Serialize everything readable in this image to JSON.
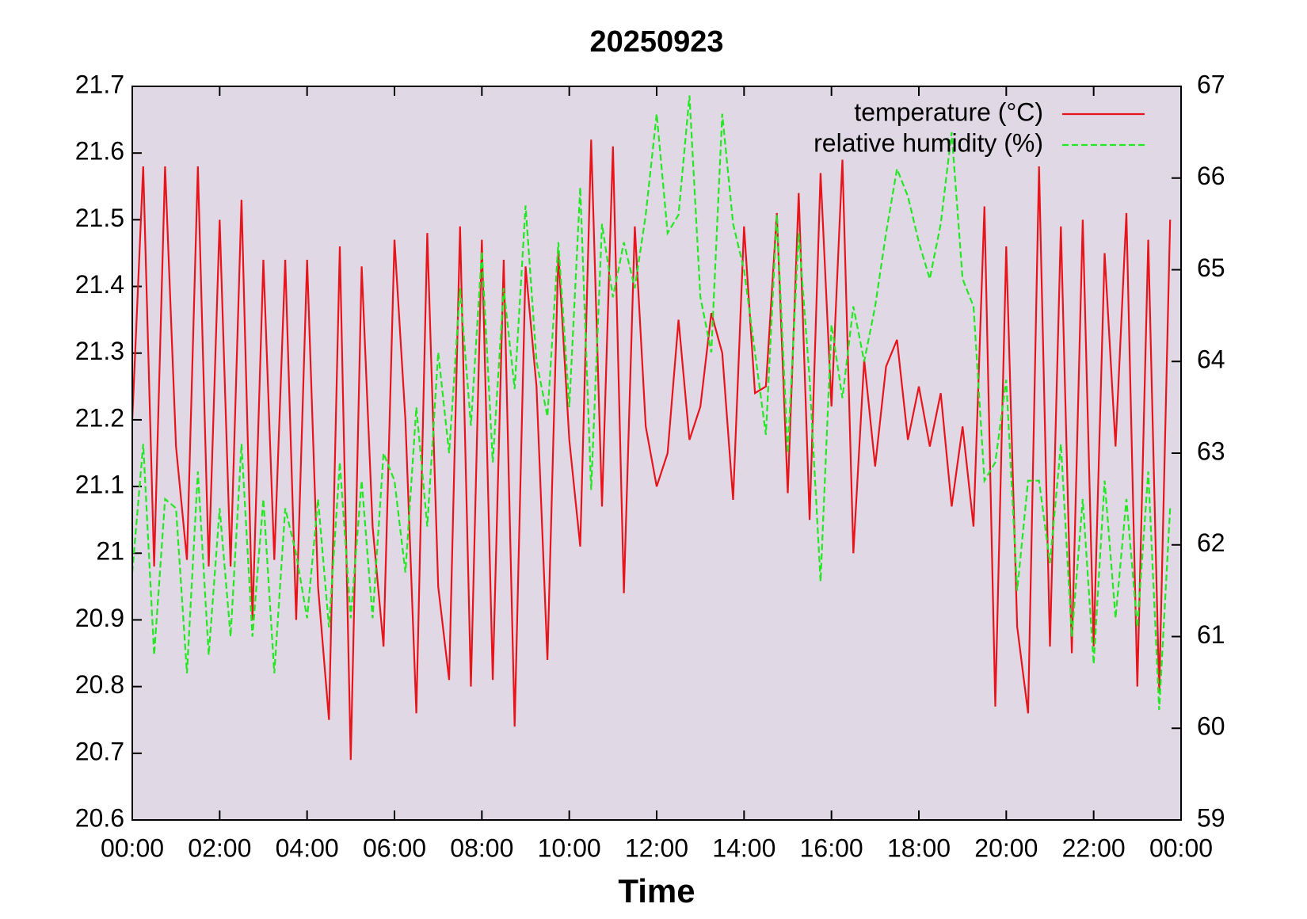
{
  "chart_data": {
    "type": "line",
    "title": "20250923",
    "xlabel": "Time",
    "x": [
      0,
      0.25,
      0.5,
      0.75,
      1,
      1.25,
      1.5,
      1.75,
      2,
      2.25,
      2.5,
      2.75,
      3,
      3.25,
      3.5,
      3.75,
      4,
      4.25,
      4.5,
      4.75,
      5,
      5.25,
      5.5,
      5.75,
      6,
      6.25,
      6.5,
      6.75,
      7,
      7.25,
      7.5,
      7.75,
      8,
      8.25,
      8.5,
      8.75,
      9,
      9.25,
      9.5,
      9.75,
      10,
      10.25,
      10.5,
      10.75,
      11,
      11.25,
      11.5,
      11.75,
      12,
      12.25,
      12.5,
      12.75,
      13,
      13.25,
      13.5,
      13.75,
      14,
      14.25,
      14.5,
      14.75,
      15,
      15.25,
      15.5,
      15.75,
      16,
      16.25,
      16.5,
      16.75,
      17,
      17.25,
      17.5,
      17.75,
      18,
      18.25,
      18.5,
      18.75,
      19,
      19.25,
      19.5,
      19.75,
      20,
      20.25,
      20.5,
      20.75,
      21,
      21.25,
      21.5,
      21.75,
      22,
      22.25,
      22.5,
      22.75,
      23,
      23.25,
      23.5,
      23.75
    ],
    "series": [
      {
        "name": "temperature (°C)",
        "color": "#e8141c",
        "dash": false,
        "values": [
          21.2,
          21.58,
          20.98,
          21.58,
          21.16,
          20.99,
          21.58,
          20.98,
          21.5,
          20.98,
          21.53,
          20.9,
          21.44,
          20.99,
          21.44,
          20.9,
          21.44,
          20.95,
          20.75,
          21.46,
          20.69,
          21.43,
          21.04,
          20.86,
          21.47,
          21.2,
          20.76,
          21.48,
          20.95,
          20.81,
          21.49,
          20.8,
          21.47,
          20.81,
          21.44,
          20.74,
          21.43,
          21.25,
          20.84,
          21.45,
          21.17,
          21.01,
          21.62,
          21.07,
          21.61,
          20.94,
          21.49,
          21.19,
          21.1,
          21.15,
          21.35,
          21.17,
          21.22,
          21.36,
          21.3,
          21.08,
          21.49,
          21.24,
          21.25,
          21.51,
          21.09,
          21.54,
          21.05,
          21.57,
          21.22,
          21.59,
          21.0,
          21.29,
          21.13,
          21.28,
          21.32,
          21.17,
          21.25,
          21.16,
          21.24,
          21.07,
          21.19,
          21.04,
          21.52,
          20.77,
          21.46,
          20.89,
          20.76,
          21.58,
          20.86,
          21.49,
          20.85,
          21.5,
          20.86,
          21.45,
          21.16,
          21.51,
          20.8,
          21.47,
          20.79,
          21.5
        ]
      },
      {
        "name": "relative humidity (%)",
        "color": "#22e822",
        "dash": true,
        "axis": "y2",
        "values": [
          61.7,
          63.1,
          60.8,
          62.5,
          62.4,
          60.6,
          62.8,
          60.8,
          62.4,
          61.0,
          63.1,
          61.0,
          62.5,
          60.6,
          62.4,
          61.9,
          61.2,
          62.5,
          61.1,
          62.9,
          61.2,
          62.7,
          61.2,
          63.0,
          62.7,
          61.7,
          63.5,
          62.2,
          64.1,
          63.0,
          64.8,
          63.3,
          65.2,
          62.9,
          64.8,
          63.7,
          65.7,
          64.0,
          63.4,
          65.3,
          63.5,
          65.9,
          62.6,
          65.5,
          64.7,
          65.3,
          64.8,
          65.6,
          66.7,
          65.4,
          65.6,
          66.9,
          64.7,
          64.1,
          66.7,
          65.5,
          65.0,
          64.1,
          63.2,
          65.6,
          63.0,
          65.4,
          63.8,
          61.6,
          64.4,
          63.6,
          64.6,
          64.0,
          64.6,
          65.4,
          66.1,
          65.8,
          65.3,
          64.9,
          65.5,
          66.5,
          64.9,
          64.6,
          62.7,
          62.9,
          63.8,
          61.5,
          62.7,
          62.7,
          61.8,
          63.1,
          61.0,
          62.5,
          60.7,
          62.7,
          61.2,
          62.5,
          61.1,
          62.8,
          60.2,
          62.4
        ]
      }
    ],
    "xlim": [
      0,
      24
    ],
    "xticks": [
      {
        "value": 0,
        "label": "00:00"
      },
      {
        "value": 2,
        "label": "02:00"
      },
      {
        "value": 4,
        "label": "04:00"
      },
      {
        "value": 6,
        "label": "06:00"
      },
      {
        "value": 8,
        "label": "08:00"
      },
      {
        "value": 10,
        "label": "10:00"
      },
      {
        "value": 12,
        "label": "12:00"
      },
      {
        "value": 14,
        "label": "14:00"
      },
      {
        "value": 16,
        "label": "16:00"
      },
      {
        "value": 18,
        "label": "18:00"
      },
      {
        "value": 20,
        "label": "20:00"
      },
      {
        "value": 22,
        "label": "22:00"
      },
      {
        "value": 24,
        "label": "00:00"
      }
    ],
    "ylim": [
      20.6,
      21.7
    ],
    "yticks": [
      20.6,
      20.7,
      20.8,
      20.9,
      21,
      21.1,
      21.2,
      21.3,
      21.4,
      21.5,
      21.6,
      21.7
    ],
    "y2lim": [
      59,
      67
    ],
    "y2ticks": [
      59,
      60,
      61,
      62,
      63,
      64,
      65,
      66,
      67
    ],
    "legend": "upper right",
    "grid": false,
    "background": "#e0d8e4"
  }
}
